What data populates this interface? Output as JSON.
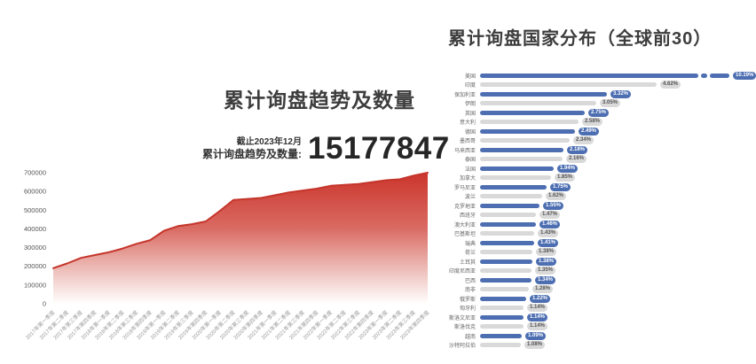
{
  "page": {
    "background": "#ffffff"
  },
  "chart_data": [
    {
      "type": "area",
      "title": "累计询盘趋势及数量",
      "note": "截止2023年12月",
      "total_label": "累计询盘趋势及数量:",
      "total_value": "15177847",
      "x": [
        "2017年第一季度",
        "2017年第二季度",
        "2017年第三季度",
        "2017年第四季度",
        "2018年第一季度",
        "2018年第二季度",
        "2018年第三季度",
        "2018年第四季度",
        "2019年第一季度",
        "2019年第二季度",
        "2019年第三季度",
        "2019年第四季度",
        "2020年第一季度",
        "2020年第二季度",
        "2020年第三季度",
        "2020年第四季度",
        "2021年第一季度",
        "2021年第二季度",
        "2021年第三季度",
        "2021年第四季度",
        "2022年第一季度",
        "2022年第二季度",
        "2022年第三季度",
        "2022年第四季度",
        "2023年第一季度",
        "2023年第二季度",
        "2023年第三季度",
        "2023年第四季度"
      ],
      "values": [
        190000,
        215000,
        245000,
        260000,
        275000,
        295000,
        320000,
        340000,
        390000,
        415000,
        425000,
        440000,
        495000,
        555000,
        560000,
        565000,
        580000,
        595000,
        605000,
        615000,
        630000,
        635000,
        640000,
        650000,
        660000,
        665000,
        685000,
        700000
      ],
      "ylim": [
        0,
        700000
      ],
      "yticks": [
        "700000",
        "600000",
        "500000",
        "400000",
        "300000",
        "200000",
        "100000",
        "0"
      ],
      "grid": false,
      "legend": "none",
      "line_color": "#c5352b",
      "area_gradient": [
        "#cb352c",
        "#d96a62",
        "#f0c8c4",
        "#ffffff"
      ]
    },
    {
      "type": "bar",
      "orientation": "horizontal",
      "title": "累计询盘国家分布（全球前30）",
      "categories": [
        "美国",
        "印度",
        "保加利亚",
        "伊朗",
        "英国",
        "意大利",
        "德国",
        "墨西哥",
        "马来西亚",
        "泰国",
        "法国",
        "加拿大",
        "罗马尼亚",
        "波兰",
        "克罗地亚",
        "西班牙",
        "澳大利亚",
        "巴基斯坦",
        "瑞典",
        "荷兰",
        "土耳其",
        "印度尼西亚",
        "巴西",
        "南非",
        "俄罗斯",
        "匈牙利",
        "斯洛文尼亚",
        "斯洛伐克",
        "越南",
        "沙特阿拉伯"
      ],
      "values": [
        10.19,
        4.62,
        3.32,
        3.05,
        2.75,
        2.58,
        2.49,
        2.34,
        2.18,
        2.16,
        1.94,
        1.85,
        1.75,
        1.62,
        1.55,
        1.47,
        1.46,
        1.43,
        1.41,
        1.38,
        1.38,
        1.35,
        1.34,
        1.28,
        1.22,
        1.14,
        1.14,
        1.14,
        1.09,
        1.08
      ],
      "value_labels": [
        "10.19%",
        "4.62%",
        "3.32%",
        "3.05%",
        "2.75%",
        "2.58%",
        "2.49%",
        "2.34%",
        "2.18%",
        "2.16%",
        "1.94%",
        "1.85%",
        "1.75%",
        "1.62%",
        "1.55%",
        "1.47%",
        "1.46%",
        "1.43%",
        "1.41%",
        "1.38%",
        "1.38%",
        "1.35%",
        "1.34%",
        "1.28%",
        "1.22%",
        "1.14%",
        "1.14%",
        "1.14%",
        "1.09%",
        "1.08%"
      ],
      "bar_color_odd_rows": "#4d6fb2",
      "bar_color_even_rows": "#d9d9d9",
      "axis_break_on_first_bar": true,
      "legend": "none",
      "grid": false
    }
  ]
}
